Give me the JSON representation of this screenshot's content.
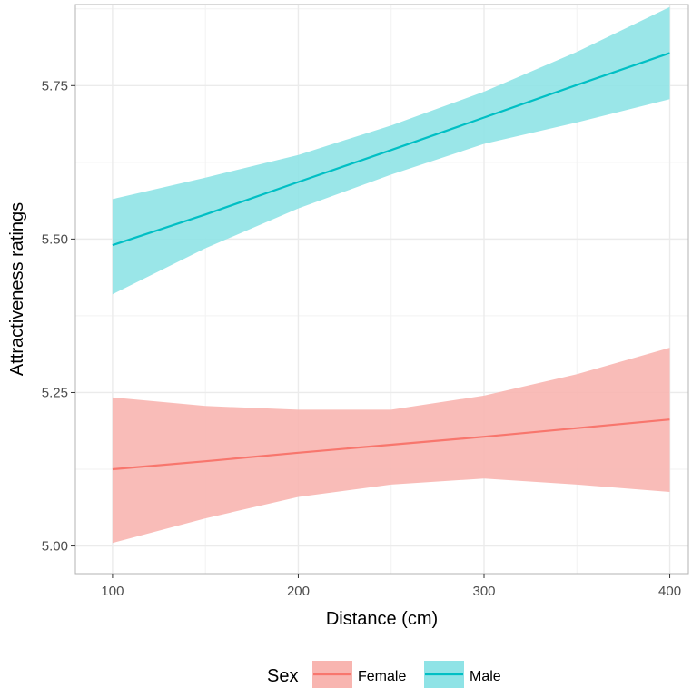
{
  "chart_data": {
    "type": "line",
    "xlabel": "Distance (cm)",
    "ylabel": "Attractiveness ratings",
    "xlim": [
      80,
      410
    ],
    "ylim": [
      4.955,
      5.882
    ],
    "x_ticks": [
      100,
      200,
      300,
      400
    ],
    "x_tick_labels": [
      "100",
      "200",
      "300",
      "400"
    ],
    "y_ticks": [
      5.0,
      5.25,
      5.5,
      5.75
    ],
    "y_tick_labels": [
      "5.00",
      "5.25",
      "5.50",
      "5.75"
    ],
    "grid": true,
    "legend": {
      "title": "Sex",
      "position": "bottom"
    },
    "series": [
      {
        "name": "Female",
        "color": "#F8766D",
        "band_color": "#F8B5B0",
        "x": [
          100,
          150,
          200,
          250,
          300,
          350,
          400
        ],
        "fit": [
          5.125,
          5.138,
          5.152,
          5.165,
          5.178,
          5.192,
          5.206
        ],
        "lower": [
          5.005,
          5.045,
          5.08,
          5.1,
          5.11,
          5.1,
          5.088
        ],
        "upper": [
          5.242,
          5.228,
          5.222,
          5.222,
          5.245,
          5.28,
          5.323
        ]
      },
      {
        "name": "Male",
        "color": "#00BFC4",
        "band_color": "#8FE3E6",
        "x": [
          100,
          150,
          200,
          250,
          300,
          350,
          400
        ],
        "fit": [
          5.49,
          5.54,
          5.593,
          5.645,
          5.698,
          5.751,
          5.803
        ],
        "lower": [
          5.41,
          5.485,
          5.55,
          5.605,
          5.655,
          5.69,
          5.728
        ],
        "upper": [
          5.565,
          5.6,
          5.637,
          5.685,
          5.74,
          5.805,
          5.878
        ]
      }
    ]
  }
}
